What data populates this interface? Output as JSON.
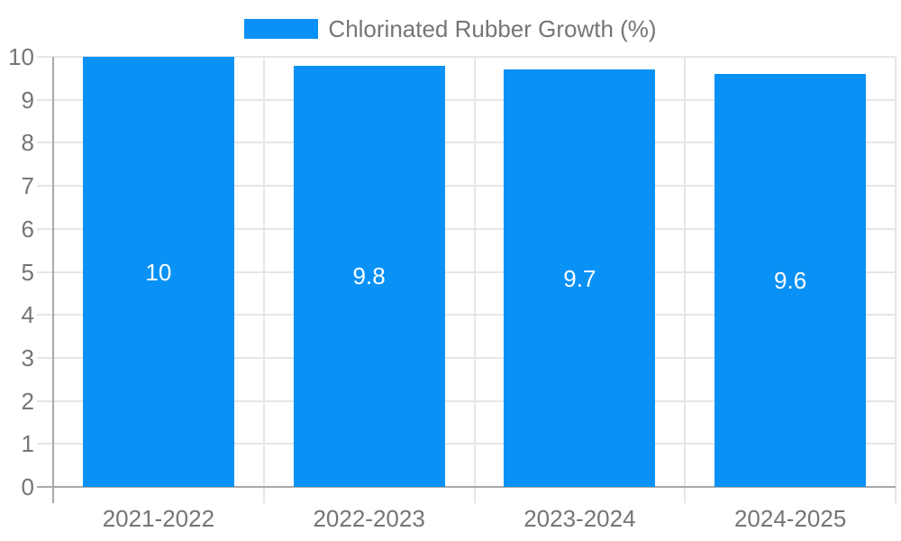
{
  "legend": {
    "label": "Chlorinated Rubber Growth (%)"
  },
  "colors": {
    "bar": "#0991F5",
    "axis_line": "#a9a9a9",
    "gridline": "#e6e6e6",
    "tick_text": "#757575",
    "bar_label_text": "#ffffff",
    "background": "#ffffff"
  },
  "chart_data": {
    "type": "bar",
    "title": "",
    "categories": [
      "2021-2022",
      "2022-2023",
      "2023-2024",
      "2024-2025"
    ],
    "series": [
      {
        "name": "Chlorinated Rubber Growth (%)",
        "values": [
          10,
          9.8,
          9.7,
          9.6
        ],
        "color": "#0991F5"
      }
    ],
    "value_labels": [
      "10",
      "9.8",
      "9.7",
      "9.6"
    ],
    "xlabel": "",
    "ylabel": "",
    "ylim": [
      0,
      10
    ],
    "ytick_step": 1,
    "yticks": [
      0,
      1,
      2,
      3,
      4,
      5,
      6,
      7,
      8,
      9,
      10
    ],
    "grid": true,
    "legend_position": "top"
  }
}
